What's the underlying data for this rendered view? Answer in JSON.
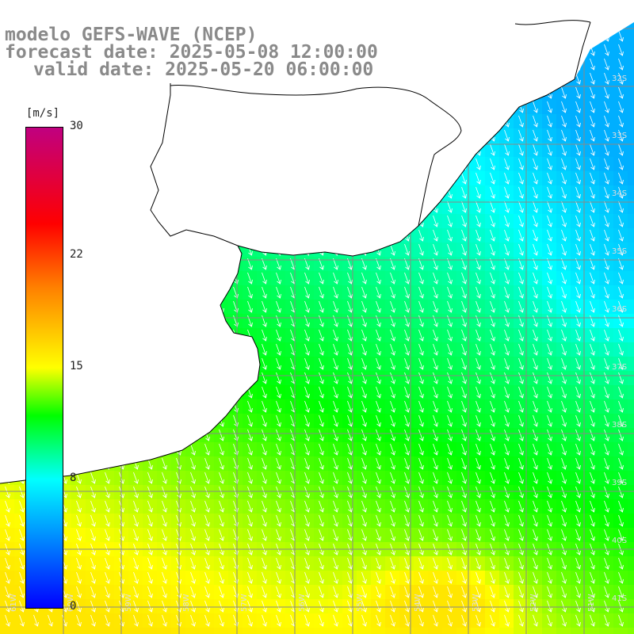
{
  "header": {
    "line1": "modelo GEFS-WAVE (NCEP)",
    "line2": "forecast date: 2025-05-08 12:00:00",
    "line3": "valid date: 2025-05-20 06:00:00"
  },
  "colorbar": {
    "unit": "[m/s]",
    "ticks": [
      "30",
      "22",
      "15",
      "8",
      "0"
    ],
    "min": 0,
    "max": 30,
    "tick_values": [
      30,
      22,
      15,
      8,
      0
    ],
    "stops": [
      {
        "v": 0,
        "color": "#0000ff"
      },
      {
        "v": 8,
        "color": "#00ffff"
      },
      {
        "v": 12,
        "color": "#00ff00"
      },
      {
        "v": 15,
        "color": "#ffff00"
      },
      {
        "v": 20,
        "color": "#ff8000"
      },
      {
        "v": 24,
        "color": "#ff0000"
      },
      {
        "v": 30,
        "color": "#c00080"
      }
    ]
  },
  "map": {
    "field": "wind speed",
    "arrow_color": "#ffffff",
    "grid_color": "#888888",
    "land_color": "#ffffff",
    "coast_color": "#000000",
    "lat_labels": [
      "32S",
      "33S",
      "34S",
      "35S",
      "36S",
      "37S",
      "38S",
      "39S",
      "40S",
      "41S"
    ],
    "lon_labels": [
      "61W",
      "60W",
      "59W",
      "58W",
      "57W",
      "56W",
      "55W",
      "54W",
      "53W",
      "52W",
      "51W"
    ]
  }
}
